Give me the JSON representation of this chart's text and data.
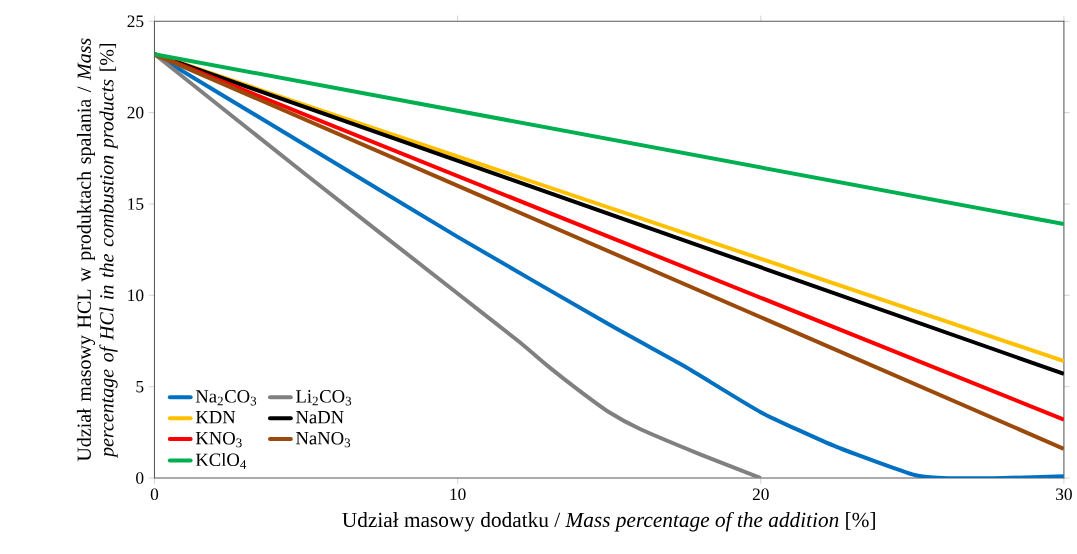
{
  "chart_data": {
    "type": "line",
    "xlabel": "Udział masowy dodatku  / *Mass percentage of the addition*  [%]",
    "ylabel": "Udział masowy HCL w produktach spalania / *Mass percentage of HCl in the combustion products* [%]",
    "xlim": [
      0,
      30
    ],
    "ylim": [
      0,
      25
    ],
    "xticks": [
      0,
      10,
      20,
      30
    ],
    "yticks": [
      0,
      5,
      10,
      15,
      20,
      25
    ],
    "grid": false,
    "legend": "bottom left",
    "marker": "none",
    "line_style": "solid",
    "series": [
      {
        "name": "Na$_{2}$CO$_{3}$",
        "color": "#0070c0",
        "x": [
          0,
          5,
          10,
          15,
          17.5,
          20,
          22.5,
          25,
          26,
          28,
          30
        ],
        "values": [
          23.2,
          18.2,
          13.2,
          8.4,
          6.1,
          3.6,
          1.7,
          0.2,
          0,
          0,
          0.1
        ]
      },
      {
        "name": "Li$_{2}$CO$_{3}$",
        "color": "#808080",
        "x": [
          0,
          5,
          10,
          12,
          13,
          14,
          15,
          16,
          18,
          20
        ],
        "values": [
          23.2,
          16.6,
          10.1,
          7.5,
          6.1,
          4.8,
          3.6,
          2.7,
          1.3,
          0
        ]
      },
      {
        "name": "KDN",
        "color": "#ffc000",
        "x": [
          0,
          30
        ],
        "values": [
          23.2,
          6.4
        ]
      },
      {
        "name": "NaDN",
        "color": "#000000",
        "x": [
          0,
          30
        ],
        "values": [
          23.2,
          5.7
        ]
      },
      {
        "name": "KNO$_{3}$",
        "color": "#ff0000",
        "x": [
          0,
          30
        ],
        "values": [
          23.2,
          3.2
        ]
      },
      {
        "name": "NaNO$_{3}$",
        "color": "#9c4a0c",
        "x": [
          0,
          30
        ],
        "values": [
          23.2,
          1.6
        ]
      },
      {
        "name": "KClO$_{4}$",
        "color": "#00b050",
        "x": [
          0,
          30
        ],
        "values": [
          23.2,
          13.9
        ]
      }
    ]
  }
}
